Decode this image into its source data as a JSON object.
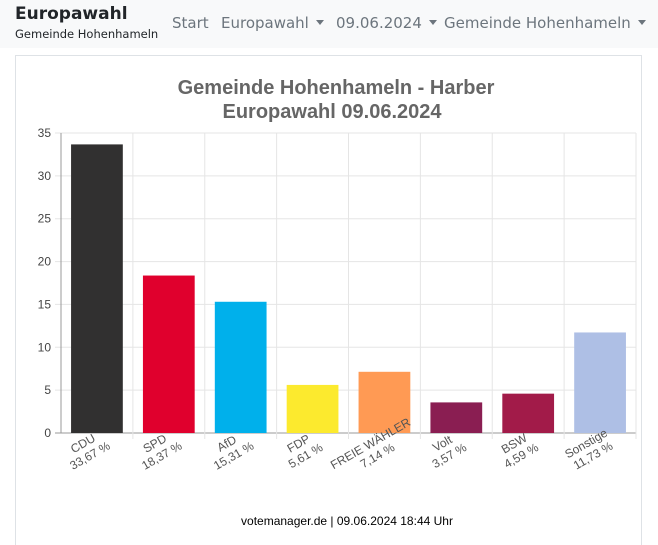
{
  "navbar": {
    "brand": "Europawahl",
    "brand_sub": "Gemeinde Hohenhameln",
    "items": [
      {
        "label": "Start"
      },
      {
        "label": "Europawahl"
      },
      {
        "label": "09.06.2024"
      },
      {
        "label": "Gemeinde Hohenhameln"
      }
    ]
  },
  "chart_data": {
    "type": "bar",
    "title": "Gemeinde Hohenhameln - Harber",
    "subtitle": "Europawahl 09.06.2024",
    "xlabel": "",
    "ylabel": "",
    "ylim": [
      0,
      35
    ],
    "yticks": [
      0,
      5,
      10,
      15,
      20,
      25,
      30,
      35
    ],
    "grid": true,
    "legend": "none",
    "categories": [
      "CDU",
      "SPD",
      "AfD",
      "FDP",
      "FREIE WÄHLER",
      "Volt",
      "BSW",
      "Sonstige"
    ],
    "labels": [
      "33,67 %",
      "18,37 %",
      "15,31 %",
      "5,61 %",
      "7,14 %",
      "3,57 %",
      "4,59 %",
      "11,73 %"
    ],
    "values": [
      33.67,
      18.37,
      15.31,
      5.61,
      7.14,
      3.57,
      4.59,
      11.73
    ],
    "colors": [
      "#313030",
      "#e0002d",
      "#00b0eb",
      "#fcea2e",
      "#ff9a54",
      "#8a1e52",
      "#a21b49",
      "#aebfe5"
    ]
  },
  "footer": "votemanager.de | 09.06.2024 18:44 Uhr"
}
